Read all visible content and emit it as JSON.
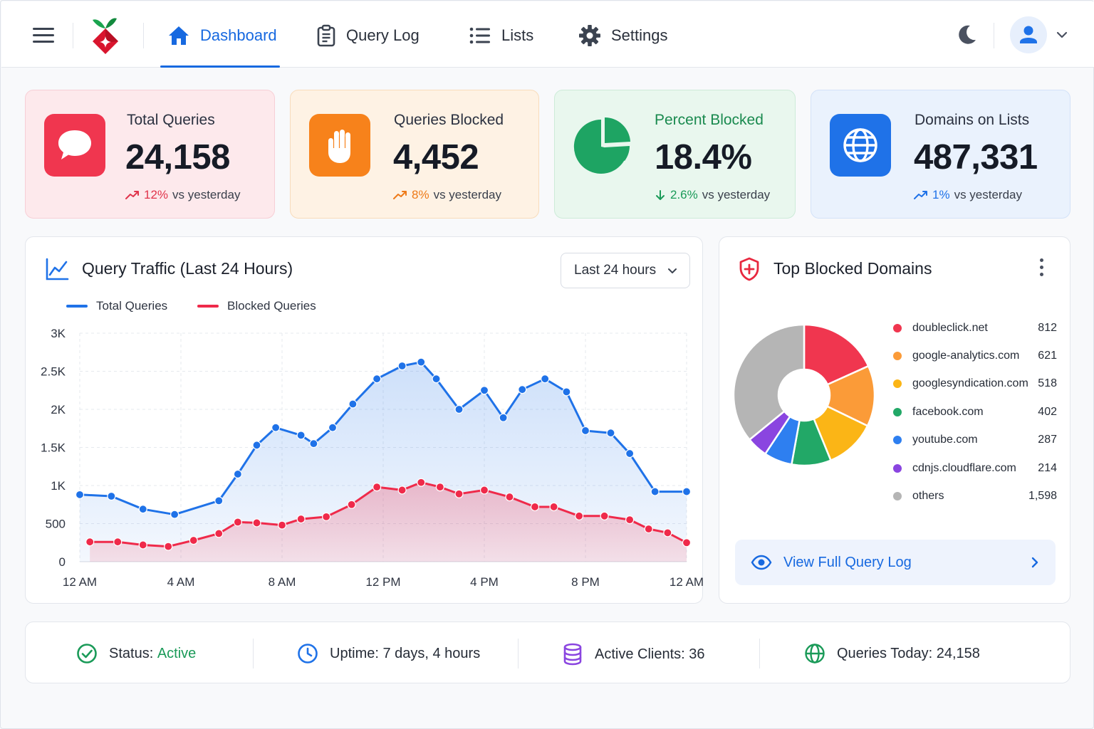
{
  "nav": {
    "items": [
      {
        "label": "Dashboard",
        "icon": "home-icon",
        "active": true
      },
      {
        "label": "Query Log",
        "icon": "clipboard-icon"
      },
      {
        "label": "Lists",
        "icon": "list-icon"
      },
      {
        "label": "Settings",
        "icon": "gear-icon"
      }
    ]
  },
  "stats": [
    {
      "label": "Total Queries",
      "value": "24,158",
      "delta_pct": "12%",
      "delta_text": "vs yesterday",
      "trend": "up",
      "icon": "chat-bubble-icon",
      "accent": "#f0364f",
      "bg": "#fde9ec",
      "border": "#f7cfd6",
      "delta_color": "#e0344b"
    },
    {
      "label": "Queries Blocked",
      "value": "4,452",
      "delta_pct": "8%",
      "delta_text": "vs yesterday",
      "trend": "up",
      "icon": "hand-stop-icon",
      "accent": "#f7821b",
      "bg": "#fef2e4",
      "border": "#f8dcbb",
      "delta_color": "#ee7a18"
    },
    {
      "label": "Percent Blocked",
      "value": "18.4%",
      "delta_pct": "2.6%",
      "delta_text": "vs yesterday",
      "trend": "down",
      "icon": "pie-chart-icon",
      "accent": "#1ea463",
      "bg": "#e9f7ee",
      "border": "#cdebd8",
      "delta_color": "#1a9a58"
    },
    {
      "label": "Domains on Lists",
      "value": "487,331",
      "delta_pct": "1%",
      "delta_text": "vs yesterday",
      "trend": "up",
      "icon": "globe-icon",
      "accent": "#1f72e8",
      "bg": "#eaf2fd",
      "border": "#d3e2f8",
      "delta_color": "#1f72e8"
    }
  ],
  "traffic": {
    "title": "Query Traffic (Last 24 Hours)",
    "range_selected": "Last 24 hours"
  },
  "chart_data": [
    {
      "type": "area",
      "title": "Query Traffic (Last 24 Hours)",
      "x_tick_labels": [
        "12 AM",
        "4 AM",
        "8 AM",
        "12 PM",
        "4 PM",
        "8 PM",
        "12 AM"
      ],
      "y_tick_labels": [
        "0",
        "500",
        "1K",
        "1.5K",
        "2K",
        "2.5K",
        "3K"
      ],
      "ylim": [
        0,
        3000
      ],
      "xlim": [
        0,
        24
      ],
      "grid": true,
      "legend_position": "top-left",
      "series": [
        {
          "name": "Total Queries",
          "color": "#1f72e8",
          "x": [
            0,
            1.25,
            2.5,
            3.75,
            5.5,
            6.25,
            7,
            7.75,
            8.75,
            9.25,
            10,
            10.8,
            11.75,
            12.75,
            13.5,
            14.1,
            15,
            16,
            16.75,
            17.5,
            18.4,
            19.25,
            20,
            21,
            21.75,
            22.75,
            24
          ],
          "y": [
            880,
            860,
            690,
            620,
            800,
            1150,
            1530,
            1760,
            1660,
            1550,
            1760,
            2070,
            2400,
            2570,
            2620,
            2400,
            2000,
            2250,
            1890,
            2260,
            2400,
            2230,
            1720,
            1690,
            1420,
            920,
            920
          ]
        },
        {
          "name": "Blocked Queries",
          "color": "#ef2a4a",
          "x": [
            0.4,
            1.5,
            2.5,
            3.5,
            4.5,
            5.5,
            6.25,
            7,
            8,
            8.75,
            9.75,
            10.75,
            11.75,
            12.75,
            13.5,
            14.25,
            15,
            16,
            17,
            18,
            18.75,
            19.75,
            20.75,
            21.75,
            22.5,
            23.25,
            24
          ],
          "y": [
            260,
            260,
            220,
            200,
            280,
            370,
            520,
            510,
            480,
            560,
            590,
            750,
            980,
            940,
            1040,
            980,
            890,
            940,
            850,
            720,
            720,
            600,
            600,
            550,
            430,
            380,
            250
          ]
        }
      ]
    },
    {
      "type": "pie",
      "title": "Top Blocked Domains",
      "labels": [
        "doubleclick.net",
        "google-analytics.com",
        "googlesyndication.com",
        "facebook.com",
        "youtube.com",
        "cdnjs.cloudflare.com",
        "others"
      ],
      "values": [
        812,
        621,
        518,
        402,
        287,
        214,
        1598
      ],
      "colors": [
        "#f0364f",
        "#fb9b38",
        "#fbb516",
        "#22a867",
        "#2e7ff0",
        "#8a45e0",
        "#b5b5b5"
      ]
    }
  ],
  "top_blocked": {
    "title": "Top Blocked Domains",
    "items": [
      {
        "domain": "doubleclick.net",
        "count": "812"
      },
      {
        "domain": "google-analytics.com",
        "count": "621"
      },
      {
        "domain": "googlesyndication.com",
        "count": "518"
      },
      {
        "domain": "facebook.com",
        "count": "402"
      },
      {
        "domain": "youtube.com",
        "count": "287"
      },
      {
        "domain": "cdnjs.cloudflare.com",
        "count": "214"
      },
      {
        "domain": "others",
        "count": "1,598"
      }
    ],
    "view_log_label": "View Full Query Log"
  },
  "status": {
    "status_label": "Status:",
    "status_value": "Active",
    "uptime": "Uptime: 7 days, 4 hours",
    "clients": "Active Clients: 36",
    "queries_today": "Queries Today: 24,158"
  }
}
